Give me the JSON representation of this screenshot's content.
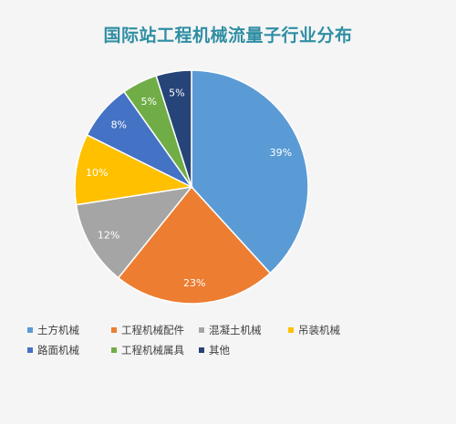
{
  "chart_data": {
    "type": "pie",
    "title": "国际站工程机械流量子行业分布",
    "categories": [
      "土方机械",
      "工程机械配件",
      "混凝土机械",
      "吊装机械",
      "路面机械",
      "工程机械属具",
      "其他"
    ],
    "values": [
      39,
      23,
      12,
      10,
      8,
      5,
      5
    ],
    "labels": [
      "39%",
      "23%",
      "12%",
      "10%",
      "8%",
      "5%",
      "5%"
    ],
    "colors": [
      "#5b9bd5",
      "#ed7d31",
      "#a5a5a5",
      "#ffc000",
      "#4472c4",
      "#70ad47",
      "#264478"
    ],
    "start_angle": "12 o'clock",
    "direction": "clockwise",
    "legend_position": "bottom"
  }
}
